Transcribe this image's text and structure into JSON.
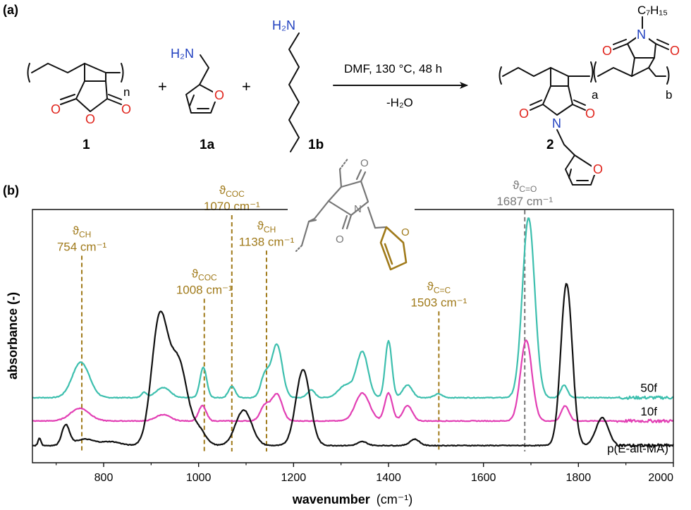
{
  "panel_labels": {
    "a": "(a)",
    "b": "(b)"
  },
  "scheme": {
    "compound_labels": [
      "1",
      "1a",
      "1b",
      "2"
    ],
    "plus": "+",
    "atom_O": "O",
    "atom_N": "N",
    "amine_H2N": "H₂N",
    "heptyl": "C₇H₁₅",
    "sub_n": "n",
    "sub_a": "a",
    "sub_b": "b",
    "conditions": "DMF, 130 °C, 48 h",
    "byproduct": "-H₂O"
  },
  "colors": {
    "teal": "#3dbfae",
    "magenta": "#e23fb4",
    "black": "#111111",
    "gold": "#a07a1a",
    "grey": "#777777",
    "oxygen": "#e0231b",
    "nitrogen": "#1f3fbf"
  },
  "chart_data": {
    "type": "line",
    "xlabel": "wavenumber",
    "xlabel_unit": "(cm⁻¹)",
    "ylabel": "absorbance (-)",
    "xlim": [
      650,
      2000
    ],
    "ylim": [
      0,
      1
    ],
    "x_ticks": [
      800,
      1000,
      1200,
      1400,
      1600,
      1800,
      2000
    ],
    "grid": false,
    "series": [
      {
        "name": "50f",
        "color": "#3dbfae",
        "baseline": 0.257,
        "peaks": [
          [
            752,
            0.14,
            18
          ],
          [
            885,
            0.02,
            6
          ],
          [
            925,
            0.04,
            15
          ],
          [
            1010,
            0.12,
            7
          ],
          [
            1070,
            0.045,
            7
          ],
          [
            1140,
            0.09,
            9
          ],
          [
            1165,
            0.21,
            11
          ],
          [
            1237,
            0.03,
            8
          ],
          [
            1310,
            0.05,
            15
          ],
          [
            1345,
            0.18,
            12
          ],
          [
            1400,
            0.225,
            7
          ],
          [
            1440,
            0.05,
            10
          ],
          [
            1505,
            0.015,
            8
          ],
          [
            1695,
            0.71,
            13
          ],
          [
            1770,
            0.05,
            7
          ]
        ],
        "legend_label_pos": "right"
      },
      {
        "name": "10f",
        "color": "#e23fb4",
        "baseline": 0.165,
        "peaks": [
          [
            750,
            0.05,
            20
          ],
          [
            925,
            0.025,
            15
          ],
          [
            1008,
            0.06,
            8
          ],
          [
            1140,
            0.06,
            10
          ],
          [
            1165,
            0.105,
            11
          ],
          [
            1345,
            0.11,
            15
          ],
          [
            1400,
            0.11,
            8
          ],
          [
            1440,
            0.06,
            10
          ],
          [
            1690,
            0.32,
            12
          ],
          [
            1772,
            0.06,
            8
          ]
        ],
        "legend_label_pos": "right"
      },
      {
        "name": "p(E-alt-MA)",
        "color": "#111111",
        "baseline": 0.068,
        "peaks": [
          [
            665,
            0.03,
            3
          ],
          [
            720,
            0.08,
            8
          ],
          [
            760,
            0.025,
            20
          ],
          [
            815,
            0.015,
            20
          ],
          [
            918,
            0.5,
            17
          ],
          [
            958,
            0.32,
            18
          ],
          [
            1000,
            0.06,
            15
          ],
          [
            1095,
            0.14,
            17
          ],
          [
            1220,
            0.3,
            15
          ],
          [
            1345,
            0.015,
            10
          ],
          [
            1455,
            0.025,
            10
          ],
          [
            1775,
            0.64,
            12
          ],
          [
            1850,
            0.11,
            13
          ]
        ],
        "legend_label_pos": "right"
      }
    ],
    "annotations": [
      {
        "symbol": "ϑ",
        "sub": "CH",
        "label": "754 cm⁻¹",
        "x": 754,
        "color": "#a07a1a",
        "top": 0.84
      },
      {
        "symbol": "ϑ",
        "sub": "COC",
        "label": "1008 cm⁻¹",
        "x": 1012,
        "color": "#a07a1a",
        "top": 0.67
      },
      {
        "symbol": "ϑ",
        "sub": "COC",
        "label": "1070 cm⁻¹",
        "x": 1070,
        "color": "#a07a1a",
        "top": 1.0
      },
      {
        "symbol": "ϑ",
        "sub": "CH",
        "label": "1138 cm⁻¹",
        "x": 1143,
        "color": "#a07a1a",
        "top": 0.86
      },
      {
        "symbol": "ϑ",
        "sub": "C=C",
        "label": "1503 cm⁻¹",
        "x": 1506,
        "color": "#a07a1a",
        "top": 0.62
      },
      {
        "symbol": "ϑ",
        "sub": "C=O",
        "label": "1687 cm⁻¹",
        "x": 1687,
        "color": "#777777",
        "top": 1.02
      }
    ]
  }
}
